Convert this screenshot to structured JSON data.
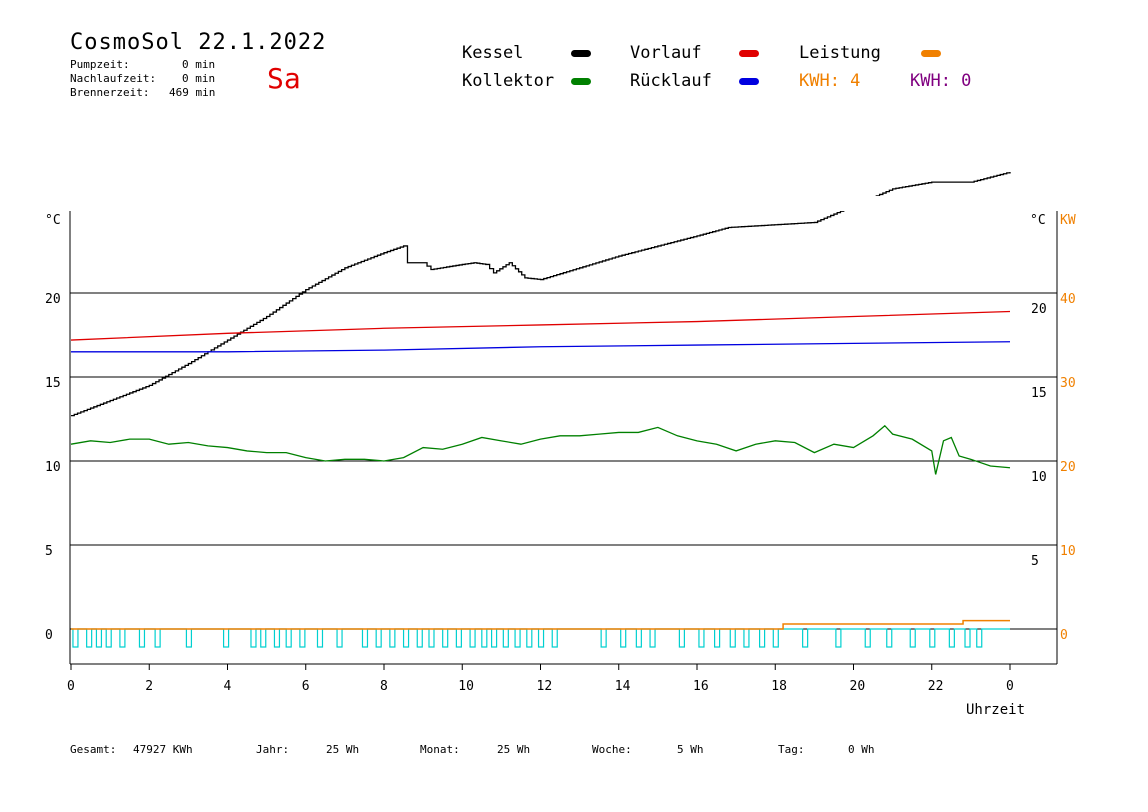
{
  "header": {
    "title": "CosmoSol 22.1.2022",
    "day": "Sa",
    "pump_label": "Pumpzeit:",
    "pump_value": "0 min",
    "afterrun_label": "Nachlaufzeit:",
    "afterrun_value": "0 min",
    "burner_label": "Brennerzeit:",
    "burner_value": "469 min"
  },
  "legend": {
    "kessel": "Kessel",
    "kollektor": "Kollektor",
    "vorlauf": "Vorlauf",
    "ruecklauf": "Rücklauf",
    "leistung": "Leistung",
    "kwh1": "KWH: 4",
    "kwh2": "KWH: 0"
  },
  "colors": {
    "kessel": "#000000",
    "kollektor": "#008000",
    "vorlauf": "#e00000",
    "ruecklauf": "#0000e0",
    "leistung": "#f08000",
    "kwh2": "#800080",
    "pumpe": "#00d0d0",
    "grid": "#000000"
  },
  "footer": {
    "gesamt_label": "Gesamt:",
    "gesamt_value": "47927 KWh",
    "jahr_label": "Jahr:",
    "jahr_value": "25 Wh",
    "monat_label": "Monat:",
    "monat_value": "25 Wh",
    "woche_label": "Woche:",
    "woche_value": "5 Wh",
    "tag_label": "Tag:",
    "tag_value": "0 Wh"
  },
  "chart_data": {
    "type": "line",
    "xlabel": "Uhrzeit",
    "x_ticks": [
      "0",
      "2",
      "4",
      "6",
      "8",
      "10",
      "12",
      "14",
      "16",
      "18",
      "20",
      "22",
      "0"
    ],
    "xlim": [
      0,
      24
    ],
    "ylabel_left": "°C",
    "ylabel_right": "°C",
    "ylabel_right2": "KW",
    "y_left_ticks": [
      "20",
      "15",
      "10",
      "5",
      "0"
    ],
    "y_right_ticks": [
      "20",
      "15",
      "10",
      "5"
    ],
    "y_right2_ticks": [
      "40",
      "30",
      "20",
      "10",
      "0"
    ],
    "ylim": [
      -2,
      25
    ],
    "grid": "horizontal",
    "series": [
      {
        "name": "Kessel",
        "key": "kessel",
        "step": true,
        "points": [
          [
            0,
            12.7
          ],
          [
            1,
            13.6
          ],
          [
            2,
            14.5
          ],
          [
            3,
            15.8
          ],
          [
            4,
            17.2
          ],
          [
            5,
            18.6
          ],
          [
            6,
            20.2
          ],
          [
            7,
            21.5
          ],
          [
            8,
            22.4
          ],
          [
            8.5,
            22.8
          ],
          [
            8.6,
            21.8
          ],
          [
            9.0,
            21.8
          ],
          [
            9.2,
            21.4
          ],
          [
            10,
            21.7
          ],
          [
            10.3,
            21.8
          ],
          [
            10.6,
            21.7
          ],
          [
            10.8,
            21.2
          ],
          [
            11.2,
            21.8
          ],
          [
            11.6,
            20.9
          ],
          [
            12.0,
            20.8
          ],
          [
            13,
            21.5
          ],
          [
            14,
            22.2
          ],
          [
            15,
            22.8
          ],
          [
            16,
            23.4
          ],
          [
            16.8,
            23.9
          ],
          [
            19,
            24.2
          ],
          [
            20,
            25.2
          ],
          [
            21,
            26.2
          ],
          [
            22,
            26.6
          ],
          [
            23,
            26.6
          ],
          [
            24,
            27.2
          ]
        ]
      },
      {
        "name": "Vorlauf",
        "key": "vorlauf",
        "step": false,
        "points": [
          [
            0,
            17.2
          ],
          [
            4,
            17.6
          ],
          [
            8,
            17.9
          ],
          [
            12,
            18.1
          ],
          [
            16,
            18.3
          ],
          [
            20,
            18.6
          ],
          [
            24,
            18.9
          ]
        ]
      },
      {
        "name": "Rücklauf",
        "key": "ruecklauf",
        "step": false,
        "points": [
          [
            0,
            16.5
          ],
          [
            4,
            16.5
          ],
          [
            8,
            16.6
          ],
          [
            12,
            16.8
          ],
          [
            16,
            16.9
          ],
          [
            20,
            17.0
          ],
          [
            24,
            17.1
          ]
        ]
      },
      {
        "name": "Kollektor",
        "key": "kollektor",
        "step": false,
        "points": [
          [
            0,
            11.0
          ],
          [
            0.5,
            11.2
          ],
          [
            1,
            11.1
          ],
          [
            1.5,
            11.3
          ],
          [
            2,
            11.3
          ],
          [
            2.5,
            11.0
          ],
          [
            3,
            11.1
          ],
          [
            3.5,
            10.9
          ],
          [
            4,
            10.8
          ],
          [
            4.5,
            10.6
          ],
          [
            5,
            10.5
          ],
          [
            5.5,
            10.5
          ],
          [
            6,
            10.2
          ],
          [
            6.5,
            10.0
          ],
          [
            7,
            10.1
          ],
          [
            7.5,
            10.1
          ],
          [
            8,
            10.0
          ],
          [
            8.5,
            10.2
          ],
          [
            9,
            10.8
          ],
          [
            9.5,
            10.7
          ],
          [
            10,
            11.0
          ],
          [
            10.5,
            11.4
          ],
          [
            11,
            11.2
          ],
          [
            11.5,
            11.0
          ],
          [
            12,
            11.3
          ],
          [
            12.5,
            11.5
          ],
          [
            13,
            11.5
          ],
          [
            13.5,
            11.6
          ],
          [
            14,
            11.7
          ],
          [
            14.5,
            11.7
          ],
          [
            15,
            12.0
          ],
          [
            15.5,
            11.5
          ],
          [
            16,
            11.2
          ],
          [
            16.5,
            11.0
          ],
          [
            17,
            10.6
          ],
          [
            17.5,
            11.0
          ],
          [
            18,
            11.2
          ],
          [
            18.5,
            11.1
          ],
          [
            19,
            10.5
          ],
          [
            19.5,
            11.0
          ],
          [
            20,
            10.8
          ],
          [
            20.5,
            11.5
          ],
          [
            20.8,
            12.1
          ],
          [
            21,
            11.6
          ],
          [
            21.5,
            11.3
          ],
          [
            22,
            10.6
          ],
          [
            22.1,
            9.2
          ],
          [
            22.3,
            11.2
          ],
          [
            22.5,
            11.4
          ],
          [
            22.7,
            10.3
          ],
          [
            23,
            10.1
          ],
          [
            23.5,
            9.7
          ],
          [
            24,
            9.6
          ]
        ]
      }
    ],
    "pump_pulses_hours": [
      0.05,
      0.4,
      0.65,
      0.9,
      1.25,
      1.75,
      2.15,
      2.95,
      3.9,
      4.6,
      4.85,
      5.2,
      5.5,
      5.85,
      6.3,
      6.8,
      7.45,
      7.8,
      8.15,
      8.5,
      8.85,
      9.15,
      9.5,
      9.85,
      10.2,
      10.5,
      10.75,
      11.05,
      11.35,
      11.65,
      11.95,
      12.3,
      13.55,
      14.05,
      14.45,
      14.8,
      15.55,
      16.05,
      16.45,
      16.85,
      17.2,
      17.6,
      17.95,
      18.7,
      19.55,
      20.3,
      20.85,
      21.45,
      21.95,
      22.45,
      22.85,
      23.15
    ],
    "leistung_kw": [
      [
        0,
        0
      ],
      [
        18.2,
        0
      ],
      [
        18.2,
        0.6
      ],
      [
        22.8,
        0.6
      ],
      [
        22.8,
        1.0
      ],
      [
        24,
        1.0
      ]
    ]
  }
}
